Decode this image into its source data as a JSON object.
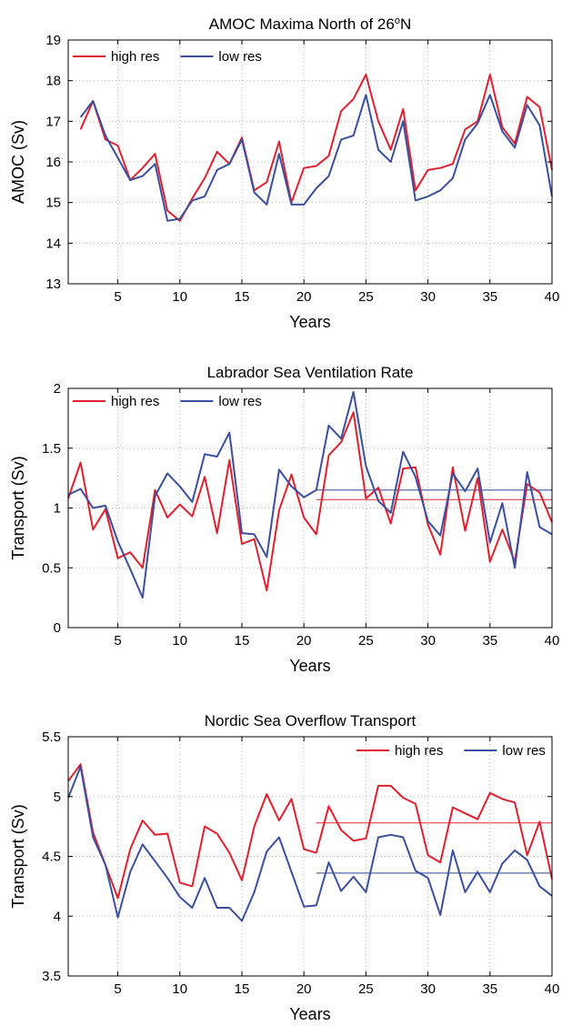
{
  "chart_data": [
    {
      "type": "line",
      "title": "AMOC Maxima North of 26",
      "title_sup": "o",
      "title_suffix": "N",
      "xlabel": "Years",
      "ylabel": "AMOC (Sv)",
      "xlim": [
        1,
        40
      ],
      "ylim": [
        13,
        19
      ],
      "xticks": [
        5,
        10,
        15,
        20,
        25,
        30,
        35,
        40
      ],
      "yticks": [
        13,
        14,
        15,
        16,
        17,
        18,
        19
      ],
      "grid": true,
      "legend": "top-left",
      "x": [
        2,
        3,
        4,
        5,
        6,
        7,
        8,
        9,
        10,
        11,
        12,
        13,
        14,
        15,
        16,
        17,
        18,
        19,
        20,
        21,
        22,
        23,
        24,
        25,
        26,
        27,
        28,
        29,
        30,
        31,
        32,
        33,
        34,
        35,
        36,
        37,
        38,
        39,
        40
      ],
      "series": [
        {
          "name": "high res",
          "color": "#e0202e",
          "values": [
            16.8,
            17.5,
            16.55,
            16.4,
            15.55,
            15.85,
            16.2,
            14.8,
            14.55,
            15.1,
            15.6,
            16.25,
            15.95,
            16.6,
            15.3,
            15.5,
            16.5,
            15.0,
            15.85,
            15.9,
            16.15,
            17.25,
            17.55,
            18.15,
            17.0,
            16.3,
            17.3,
            15.3,
            15.8,
            15.85,
            15.95,
            16.8,
            17.0,
            18.15,
            16.85,
            16.45,
            17.6,
            17.35,
            15.8
          ]
        },
        {
          "name": "low res",
          "color": "#3a4f9e",
          "values": [
            17.1,
            17.5,
            16.65,
            16.1,
            15.55,
            15.65,
            15.95,
            14.55,
            14.6,
            15.05,
            15.15,
            15.8,
            15.95,
            16.55,
            15.25,
            14.95,
            16.2,
            14.95,
            14.95,
            15.35,
            15.65,
            16.55,
            16.65,
            17.65,
            16.3,
            16.0,
            17.0,
            15.05,
            15.15,
            15.3,
            15.6,
            16.55,
            16.95,
            17.65,
            16.75,
            16.35,
            17.4,
            16.9,
            15.15
          ]
        }
      ]
    },
    {
      "type": "line",
      "title": "Labrador Sea Ventilation Rate",
      "xlabel": "Years",
      "ylabel": "Transport (Sv)",
      "xlim": [
        1,
        40
      ],
      "ylim": [
        0,
        2
      ],
      "xticks": [
        5,
        10,
        15,
        20,
        25,
        30,
        35,
        40
      ],
      "yticks": [
        0,
        0.5,
        1,
        1.5,
        2
      ],
      "grid": true,
      "legend": "top-left",
      "x": [
        1,
        2,
        3,
        4,
        5,
        6,
        7,
        8,
        9,
        10,
        11,
        12,
        13,
        14,
        15,
        16,
        17,
        18,
        19,
        20,
        21,
        22,
        23,
        24,
        25,
        26,
        27,
        28,
        29,
        30,
        31,
        32,
        33,
        34,
        35,
        36,
        37,
        38,
        39,
        40
      ],
      "series": [
        {
          "name": "high res",
          "color": "#e0202e",
          "values": [
            1.08,
            1.38,
            0.82,
            0.99,
            0.58,
            0.63,
            0.5,
            1.15,
            0.92,
            1.03,
            0.93,
            1.26,
            0.79,
            1.4,
            0.7,
            0.74,
            0.31,
            0.98,
            1.28,
            0.92,
            0.78,
            1.44,
            1.55,
            1.8,
            1.08,
            1.17,
            0.87,
            1.33,
            1.34,
            0.86,
            0.61,
            1.34,
            0.81,
            1.25,
            0.55,
            0.82,
            0.55,
            1.2,
            1.13,
            0.88
          ]
        },
        {
          "name": "low res",
          "color": "#3a4f9e",
          "values": [
            1.11,
            1.16,
            1.0,
            1.02,
            0.72,
            0.49,
            0.25,
            1.1,
            1.29,
            1.18,
            1.05,
            1.45,
            1.43,
            1.63,
            0.79,
            0.78,
            0.59,
            1.32,
            1.18,
            1.09,
            1.15,
            1.69,
            1.58,
            1.97,
            1.35,
            1.06,
            0.96,
            1.47,
            1.26,
            0.89,
            0.77,
            1.29,
            1.14,
            1.33,
            0.71,
            1.04,
            0.5,
            1.3,
            0.84,
            0.78
          ]
        }
      ],
      "mean_lines": [
        {
          "color": "#e0202e",
          "x": [
            21,
            40
          ],
          "y": 1.07
        },
        {
          "color": "#3a4f9e",
          "x": [
            21,
            40
          ],
          "y": 1.15
        }
      ]
    },
    {
      "type": "line",
      "title": "Nordic Sea Overflow Transport",
      "xlabel": "Years",
      "ylabel": "Transport (Sv)",
      "xlim": [
        1,
        40
      ],
      "ylim": [
        3.5,
        5.5
      ],
      "xticks": [
        5,
        10,
        15,
        20,
        25,
        30,
        35,
        40
      ],
      "yticks": [
        3.5,
        4,
        4.5,
        5,
        5.5
      ],
      "grid": true,
      "legend": "top-right",
      "x": [
        1,
        2,
        3,
        4,
        5,
        6,
        7,
        8,
        9,
        10,
        11,
        12,
        13,
        14,
        15,
        16,
        17,
        18,
        19,
        20,
        21,
        22,
        23,
        24,
        25,
        26,
        27,
        28,
        29,
        30,
        31,
        32,
        33,
        34,
        35,
        36,
        37,
        38,
        39,
        40
      ],
      "series": [
        {
          "name": "high res",
          "color": "#e0202e",
          "values": [
            5.13,
            5.27,
            4.7,
            4.43,
            4.15,
            4.56,
            4.8,
            4.68,
            4.69,
            4.28,
            4.25,
            4.75,
            4.69,
            4.53,
            4.3,
            4.75,
            5.02,
            4.8,
            4.98,
            4.56,
            4.53,
            4.92,
            4.72,
            4.63,
            4.65,
            5.09,
            5.09,
            4.99,
            4.94,
            4.51,
            4.45,
            4.91,
            4.86,
            4.81,
            5.03,
            4.98,
            4.95,
            4.51,
            4.79,
            4.31
          ]
        },
        {
          "name": "low res",
          "color": "#3a4f9e",
          "values": [
            4.99,
            5.25,
            4.66,
            4.43,
            3.99,
            4.37,
            4.6,
            4.46,
            4.32,
            4.16,
            4.07,
            4.32,
            4.07,
            4.07,
            3.96,
            4.2,
            4.54,
            4.66,
            4.37,
            4.08,
            4.09,
            4.45,
            4.21,
            4.33,
            4.2,
            4.66,
            4.68,
            4.66,
            4.38,
            4.32,
            4.01,
            4.55,
            4.2,
            4.37,
            4.2,
            4.44,
            4.55,
            4.47,
            4.25,
            4.17
          ]
        }
      ],
      "mean_lines": [
        {
          "color": "#e0202e",
          "x": [
            21,
            40
          ],
          "y": 4.78
        },
        {
          "color": "#3a4f9e",
          "x": [
            21,
            40
          ],
          "y": 4.36
        }
      ]
    }
  ]
}
